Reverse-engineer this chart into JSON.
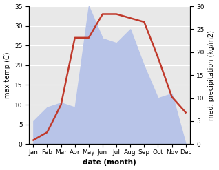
{
  "months": [
    "Jan",
    "Feb",
    "Mar",
    "Apr",
    "May",
    "Jun",
    "Jul",
    "Aug",
    "Sep",
    "Oct",
    "Nov",
    "Dec"
  ],
  "temp": [
    1,
    3,
    10,
    27,
    27,
    33,
    33,
    32,
    31,
    22,
    12,
    8
  ],
  "precip_right": [
    5,
    8,
    9,
    8,
    30,
    23,
    22,
    25,
    17,
    10,
    11,
    0
  ],
  "temp_color": "#c0392b",
  "precip_fill_color": "#b8c4e8",
  "ylabel_left": "max temp (C)",
  "ylabel_right": "med. precipitation (kg/m2)",
  "xlabel": "date (month)",
  "ylim_left": [
    0,
    35
  ],
  "ylim_right": [
    0,
    30
  ],
  "yticks_left": [
    0,
    5,
    10,
    15,
    20,
    25,
    30,
    35
  ],
  "yticks_right": [
    0,
    5,
    10,
    15,
    20,
    25,
    30
  ],
  "bg_color": "#ffffff",
  "plot_bg_color": "#e8e8e8",
  "grid_color": "#ffffff",
  "line_width": 1.8
}
